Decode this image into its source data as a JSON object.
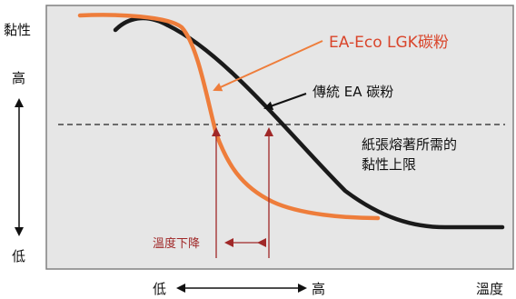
{
  "y_axis": {
    "title": "黏性",
    "high_label": "高",
    "low_label": "低"
  },
  "x_axis": {
    "title": "溫度",
    "low_label": "低",
    "high_label": "高"
  },
  "series": {
    "ea_eco": {
      "name": "EA-Eco LGK碳粉",
      "color": "#ee7d3b"
    },
    "traditional": {
      "name": "傳統 EA 碳粉",
      "color": "#1a1a1a"
    }
  },
  "threshold": {
    "label_line1": "紙張熔著所需的",
    "label_line2": "黏性上限"
  },
  "temp_drop": {
    "label": "溫度下降",
    "color": "#a02828"
  },
  "colors": {
    "plot_bg": "#e6e6e6",
    "frame": "#808080",
    "callout": "#d9452b"
  }
}
